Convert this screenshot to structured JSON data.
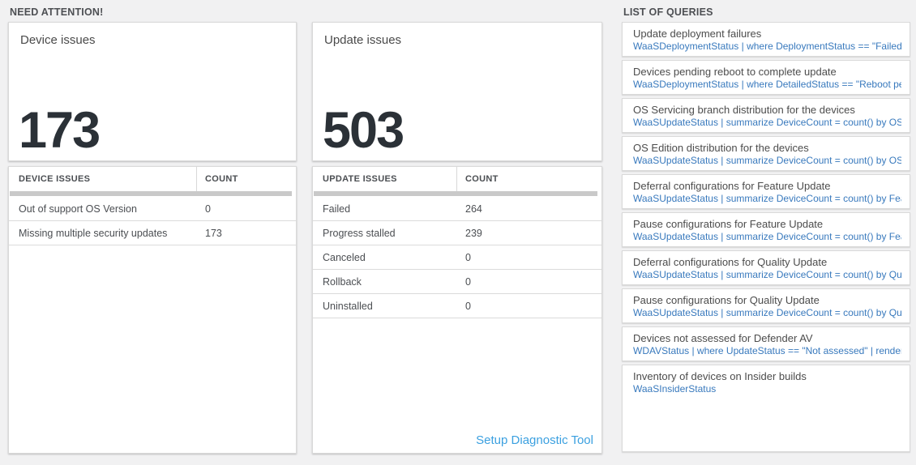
{
  "colors": {
    "query_link": "#3879bd",
    "setup_link": "#3ba0e0",
    "big_number": "#2b3137",
    "scrollbar": "#c9c9c9"
  },
  "need_attention": {
    "header": "NEED ATTENTION!",
    "cards": [
      {
        "title": "Device issues",
        "big_number": "173",
        "table": {
          "columns": [
            "DEVICE ISSUES",
            "COUNT"
          ],
          "rows": [
            {
              "label": "Out of support OS Version",
              "count": "0"
            },
            {
              "label": "Missing multiple security updates",
              "count": "173"
            }
          ]
        }
      },
      {
        "title": "Update issues",
        "big_number": "503",
        "table": {
          "columns": [
            "UPDATE ISSUES",
            "COUNT"
          ],
          "rows": [
            {
              "label": "Failed",
              "count": "264"
            },
            {
              "label": "Progress stalled",
              "count": "239"
            },
            {
              "label": "Canceled",
              "count": "0"
            },
            {
              "label": "Rollback",
              "count": "0"
            },
            {
              "label": "Uninstalled",
              "count": "0"
            }
          ]
        },
        "footer_link": "Setup Diagnostic Tool"
      }
    ]
  },
  "queries": {
    "header": "LIST OF QUERIES",
    "items": [
      {
        "title": "Update deployment failures",
        "query": "WaaSDeploymentStatus | where DeploymentStatus == \"Failed\" |..."
      },
      {
        "title": "Devices pending reboot to complete update",
        "query": "WaaSDeploymentStatus | where DetailedStatus == \"Reboot pend..."
      },
      {
        "title": "OS Servicing branch distribution for the devices",
        "query": "WaaSUpdateStatus | summarize DeviceCount = count() by OSSer..."
      },
      {
        "title": "OS Edition distribution for the devices",
        "query": "WaaSUpdateStatus | summarize DeviceCount = count() by OSEdit..."
      },
      {
        "title": "Deferral configurations for Feature Update",
        "query": "WaaSUpdateStatus | summarize DeviceCount = count() by Featur..."
      },
      {
        "title": "Pause configurations for Feature Update",
        "query": "WaaSUpdateStatus | summarize DeviceCount = count() by Featur..."
      },
      {
        "title": "Deferral configurations for Quality Update",
        "query": "WaaSUpdateStatus | summarize DeviceCount = count() by Qualit..."
      },
      {
        "title": "Pause configurations for Quality Update",
        "query": "WaaSUpdateStatus | summarize DeviceCount = count() by Qualit..."
      },
      {
        "title": "Devices not assessed for Defender AV",
        "query": "WDAVStatus | where UpdateStatus == \"Not assessed\" | render ta..."
      },
      {
        "title": "Inventory of devices on Insider builds",
        "query": "WaaSInsiderStatus"
      }
    ]
  }
}
